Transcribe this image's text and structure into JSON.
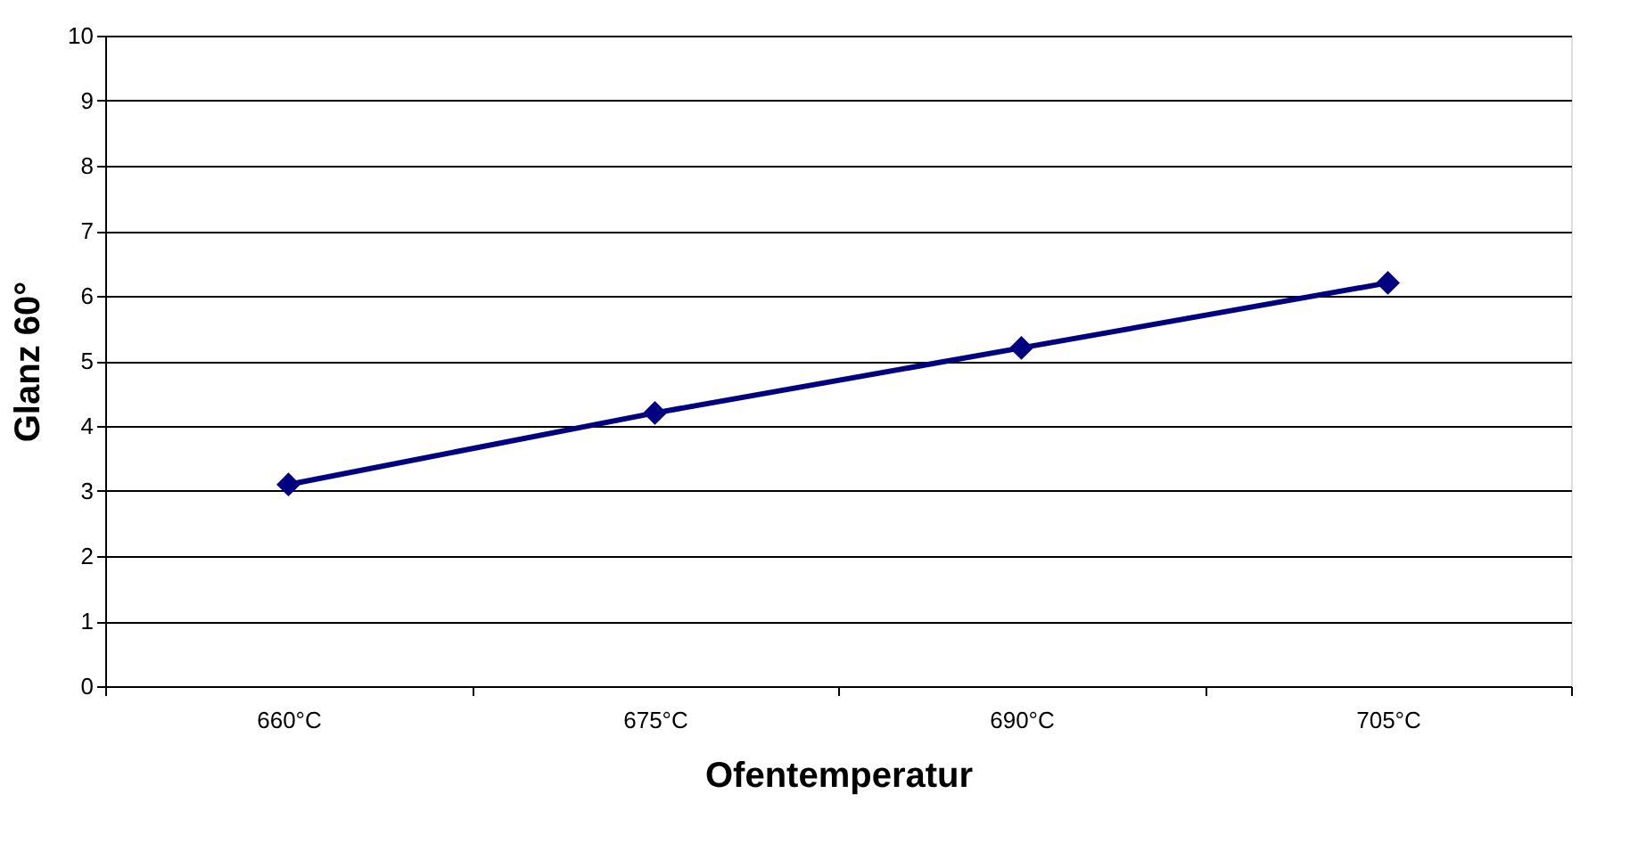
{
  "chart_data": {
    "type": "line",
    "xlabel": "Ofentemperatur",
    "ylabel": "Glanz 60°",
    "categories": [
      "660°C",
      "675°C",
      "690°C",
      "705°C"
    ],
    "series": [
      {
        "color": "#000080",
        "values": [
          3.1,
          4.2,
          5.2,
          6.2
        ]
      }
    ],
    "ylim": [
      0,
      10
    ],
    "yticks": [
      0,
      1,
      2,
      3,
      4,
      5,
      6,
      7,
      8,
      9,
      10
    ],
    "grid": "y",
    "marker": "diamond",
    "line_style": "solid"
  }
}
